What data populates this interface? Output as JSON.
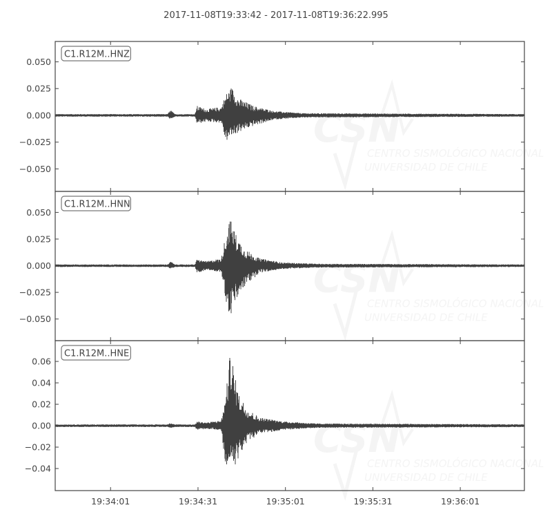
{
  "title": "2017-11-08T19:33:42  -  2017-11-08T19:36:22.995",
  "watermark": {
    "logo_text": "CSN",
    "line1": "CENTRO SISMOLÓGICO NACIONAL",
    "line2": "UNIVERSIDAD DE CHILE"
  },
  "colors": {
    "trace": "#404040",
    "axes": "#444444",
    "watermark": "#f4f4f4"
  },
  "chart_data": [
    {
      "type": "line",
      "channel": "C1.R12M..HNZ",
      "x_start": "19:33:42",
      "x_end": "19:36:22.995",
      "xticks": [
        "19:34:01",
        "19:34:31",
        "19:35:01",
        "19:35:31",
        "19:36:01"
      ],
      "xtick_seconds": [
        19,
        49,
        79,
        109,
        139
      ],
      "x_range_seconds": [
        0,
        160.995
      ],
      "ylim": [
        -0.071,
        0.069
      ],
      "yticks": [
        0.05,
        0.025,
        0.0,
        -0.025,
        -0.05
      ],
      "ytick_labels": [
        "0.050",
        "0.025",
        "0.000",
        "−0.025",
        "−0.050"
      ],
      "envelope_seconds_upper_lower": [
        [
          0,
          0.0012,
          -0.0012
        ],
        [
          38.5,
          0.0012,
          -0.0012
        ],
        [
          39.7,
          0.005,
          -0.004
        ],
        [
          41,
          0.0012,
          -0.0012
        ],
        [
          48,
          0.0012,
          -0.0012
        ],
        [
          48.6,
          0.009,
          -0.008
        ],
        [
          52,
          0.006,
          -0.006
        ],
        [
          57,
          0.008,
          -0.007
        ],
        [
          58.5,
          0.02,
          -0.025
        ],
        [
          60.5,
          0.027,
          -0.02
        ],
        [
          63,
          0.016,
          -0.016
        ],
        [
          68,
          0.009,
          -0.01
        ],
        [
          75,
          0.004,
          -0.004
        ],
        [
          85,
          0.002,
          -0.002
        ],
        [
          160.995,
          0.0012,
          -0.0012
        ]
      ]
    },
    {
      "type": "line",
      "channel": "C1.R12M..HNN",
      "x_start": "19:33:42",
      "x_end": "19:36:22.995",
      "xticks": [
        "19:34:01",
        "19:34:31",
        "19:35:01",
        "19:35:31",
        "19:36:01"
      ],
      "xtick_seconds": [
        19,
        49,
        79,
        109,
        139
      ],
      "x_range_seconds": [
        0,
        160.995
      ],
      "ylim": [
        -0.0703,
        0.0697
      ],
      "yticks": [
        0.05,
        0.025,
        0.0,
        -0.025,
        -0.05
      ],
      "ytick_labels": [
        "0.050",
        "0.025",
        "0.000",
        "−0.025",
        "−0.050"
      ],
      "envelope_seconds_upper_lower": [
        [
          0,
          0.0012,
          -0.0012
        ],
        [
          38.5,
          0.0012,
          -0.0012
        ],
        [
          39.7,
          0.004,
          -0.003
        ],
        [
          41,
          0.0012,
          -0.0012
        ],
        [
          48,
          0.0012,
          -0.0012
        ],
        [
          48.6,
          0.006,
          -0.007
        ],
        [
          52,
          0.004,
          -0.004
        ],
        [
          57,
          0.007,
          -0.006
        ],
        [
          58.5,
          0.03,
          -0.032
        ],
        [
          60,
          0.045,
          -0.05
        ],
        [
          62,
          0.03,
          -0.034
        ],
        [
          65,
          0.016,
          -0.02
        ],
        [
          70,
          0.007,
          -0.007
        ],
        [
          78,
          0.003,
          -0.003
        ],
        [
          90,
          0.0018,
          -0.0018
        ],
        [
          160.995,
          0.0012,
          -0.0012
        ]
      ]
    },
    {
      "type": "line",
      "channel": "C1.R12M..HNE",
      "x_start": "19:33:42",
      "x_end": "19:36:22.995",
      "xticks": [
        "19:34:01",
        "19:34:31",
        "19:35:01",
        "19:35:31",
        "19:36:01"
      ],
      "xtick_seconds": [
        19,
        49,
        79,
        109,
        139
      ],
      "x_range_seconds": [
        0,
        160.995
      ],
      "ylim": [
        -0.0606,
        0.0794
      ],
      "yticks": [
        0.06,
        0.04,
        0.02,
        0.0,
        -0.02,
        -0.04
      ],
      "ytick_labels": [
        "0.06",
        "0.04",
        "0.02",
        "0.00",
        "−0.02",
        "−0.04"
      ],
      "envelope_seconds_upper_lower": [
        [
          0,
          0.0012,
          -0.0012
        ],
        [
          38.5,
          0.0012,
          -0.0012
        ],
        [
          39.7,
          0.003,
          -0.002
        ],
        [
          41,
          0.0012,
          -0.0012
        ],
        [
          48,
          0.0012,
          -0.0012
        ],
        [
          48.6,
          0.004,
          -0.004
        ],
        [
          52,
          0.003,
          -0.003
        ],
        [
          57,
          0.005,
          -0.004
        ],
        [
          58.5,
          0.028,
          -0.043
        ],
        [
          60.3,
          0.075,
          -0.035
        ],
        [
          61.5,
          0.048,
          -0.038
        ],
        [
          63,
          0.03,
          -0.03
        ],
        [
          66,
          0.016,
          -0.015
        ],
        [
          70,
          0.008,
          -0.008
        ],
        [
          78,
          0.004,
          -0.004
        ],
        [
          90,
          0.002,
          -0.002
        ],
        [
          160.995,
          0.0013,
          -0.0013
        ]
      ]
    }
  ]
}
